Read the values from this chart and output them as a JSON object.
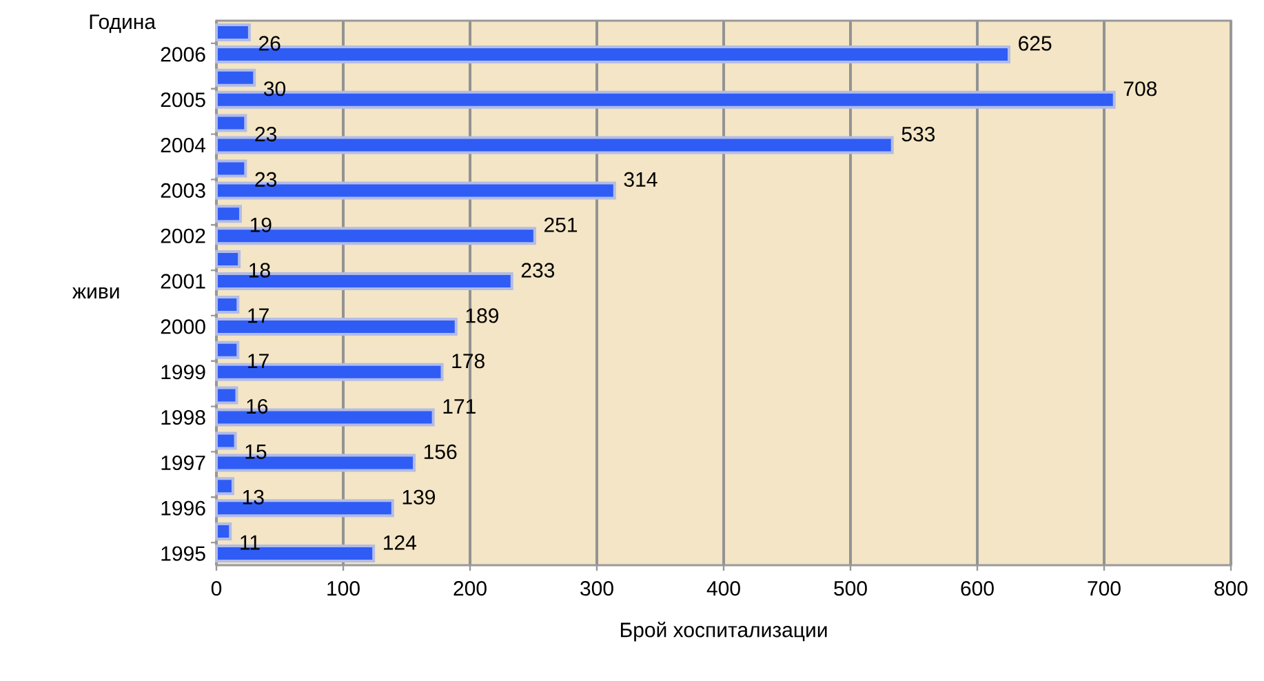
{
  "chart_data": {
    "type": "bar",
    "orientation": "horizontal",
    "xlabel": "Брой хоспитализации",
    "ylabel": "Година",
    "annotations": [
      "живи"
    ],
    "categories": [
      "2006",
      "2005",
      "2004",
      "2003",
      "2002",
      "2001",
      "2000",
      "1999",
      "1998",
      "1997",
      "1996",
      "1995"
    ],
    "series": [
      {
        "color": "#2f5cf5",
        "values": [
          26,
          30,
          23,
          23,
          19,
          18,
          17,
          17,
          16,
          15,
          13,
          11
        ]
      },
      {
        "color": "#2f5cf5",
        "values": [
          625,
          708,
          533,
          314,
          251,
          233,
          189,
          178,
          171,
          156,
          139,
          124
        ]
      }
    ],
    "xlim": [
      0,
      800
    ],
    "xticks": [
      0,
      100,
      200,
      300,
      400,
      500,
      600,
      700,
      800
    ],
    "grid": "x",
    "data_labels": true
  }
}
